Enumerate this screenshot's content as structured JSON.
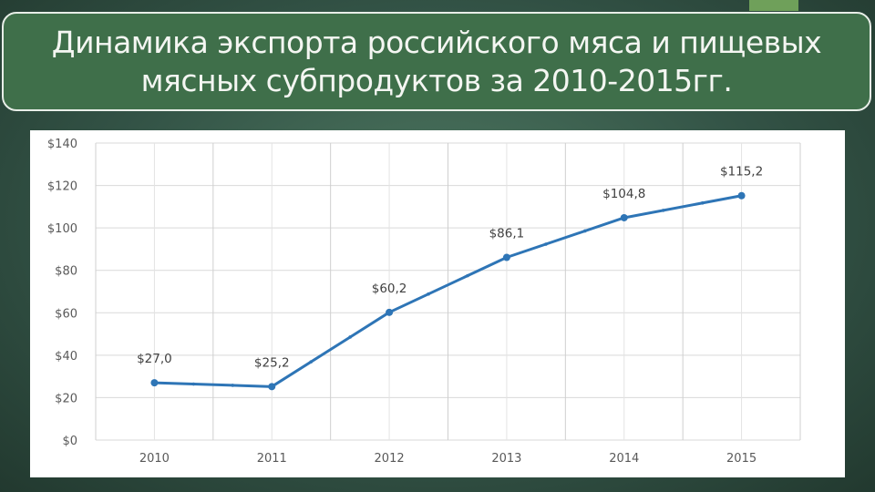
{
  "slide": {
    "title": "Динамика экспорта российского мяса и пищевых мясных субпродуктов за 2010-2015гг.",
    "colors": {
      "background": "#335346",
      "title_fill": "#3f6f4a",
      "accent": "#6fa05a",
      "line": "#2e75b6"
    }
  },
  "chart_data": {
    "type": "line",
    "title": "",
    "xlabel": "",
    "ylabel": "",
    "x": [
      "2010",
      "2011",
      "2012",
      "2013",
      "2014",
      "2015"
    ],
    "series": [
      {
        "values": [
          27.0,
          25.2,
          60.2,
          86.1,
          104.8,
          115.2
        ]
      }
    ],
    "data_labels": [
      "$27,0",
      "$25,2",
      "$60,2",
      "$86,1",
      "$104,8",
      "$115,2"
    ],
    "y_ticks": [
      0,
      20,
      40,
      60,
      80,
      100,
      120,
      140
    ],
    "y_tick_labels": [
      "$0",
      "$20",
      "$40",
      "$60",
      "$80",
      "$100",
      "$120",
      "$140"
    ],
    "ylim": [
      0,
      140
    ],
    "grid": true,
    "legend": "none"
  }
}
